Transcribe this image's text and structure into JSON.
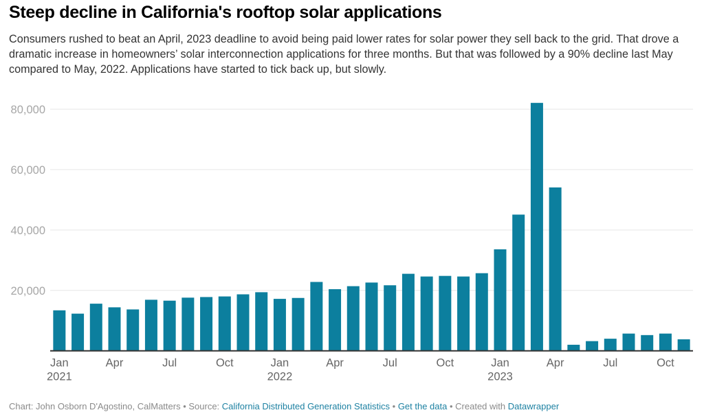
{
  "header": {
    "title": "Steep decline in California's rooftop solar applications",
    "description": "Consumers rushed to beat an April, 2023 deadline to avoid being paid lower rates for solar power they sell back to the grid. That drove a dramatic increase in homeowners’ solar interconnection applications for three months. But that was followed by a 90% decline last May compared to May, 2022. Applications have started to tick back up, but slowly."
  },
  "colors": {
    "bar": "#0c7f9e",
    "grid": "#e6e6e6",
    "baseline": "#333333",
    "link": "#1d81a2"
  },
  "footer": {
    "chart_prefix": "Chart: John Osborn D'Agostino, CalMatters",
    "sep1": " • Source: ",
    "source_link": "California Distributed Generation Statistics",
    "sep2": " • ",
    "data_link": "Get the data",
    "sep3": " • Created with ",
    "tool_link": "Datawrapper"
  },
  "chart_data": {
    "type": "bar",
    "title": "Steep decline in California's rooftop solar applications",
    "xlabel": "",
    "ylabel": "",
    "ylim": [
      0,
      80000
    ],
    "yticks": [
      20000,
      40000,
      60000,
      80000
    ],
    "ytick_labels": [
      "20,000",
      "40,000",
      "60,000",
      "80,000"
    ],
    "grid": true,
    "legend": "none",
    "categories": [
      "2021-01",
      "2021-02",
      "2021-03",
      "2021-04",
      "2021-05",
      "2021-06",
      "2021-07",
      "2021-08",
      "2021-09",
      "2021-10",
      "2021-11",
      "2021-12",
      "2022-01",
      "2022-02",
      "2022-03",
      "2022-04",
      "2022-05",
      "2022-06",
      "2022-07",
      "2022-08",
      "2022-09",
      "2022-10",
      "2022-11",
      "2022-12",
      "2023-01",
      "2023-02",
      "2023-03",
      "2023-04",
      "2023-05",
      "2023-06",
      "2023-07",
      "2023-08",
      "2023-09",
      "2023-10",
      "2023-11"
    ],
    "values": [
      13400,
      12300,
      15600,
      14400,
      13700,
      16900,
      16600,
      17600,
      17800,
      18000,
      18700,
      19400,
      17200,
      17500,
      22800,
      20400,
      21400,
      22600,
      21700,
      25500,
      24600,
      24800,
      24600,
      25700,
      33600,
      45100,
      82100,
      54100,
      2000,
      3200,
      4000,
      5700,
      5200,
      5700,
      3800
    ],
    "xtick_labels": [
      {
        "index": 0,
        "month": "Jan",
        "year": "2021"
      },
      {
        "index": 3,
        "month": "Apr",
        "year": ""
      },
      {
        "index": 6,
        "month": "Jul",
        "year": ""
      },
      {
        "index": 9,
        "month": "Oct",
        "year": ""
      },
      {
        "index": 12,
        "month": "Jan",
        "year": "2022"
      },
      {
        "index": 15,
        "month": "Apr",
        "year": ""
      },
      {
        "index": 18,
        "month": "Jul",
        "year": ""
      },
      {
        "index": 21,
        "month": "Oct",
        "year": ""
      },
      {
        "index": 24,
        "month": "Jan",
        "year": "2023"
      },
      {
        "index": 27,
        "month": "Apr",
        "year": ""
      },
      {
        "index": 30,
        "month": "Jul",
        "year": ""
      },
      {
        "index": 33,
        "month": "Oct",
        "year": ""
      }
    ]
  }
}
